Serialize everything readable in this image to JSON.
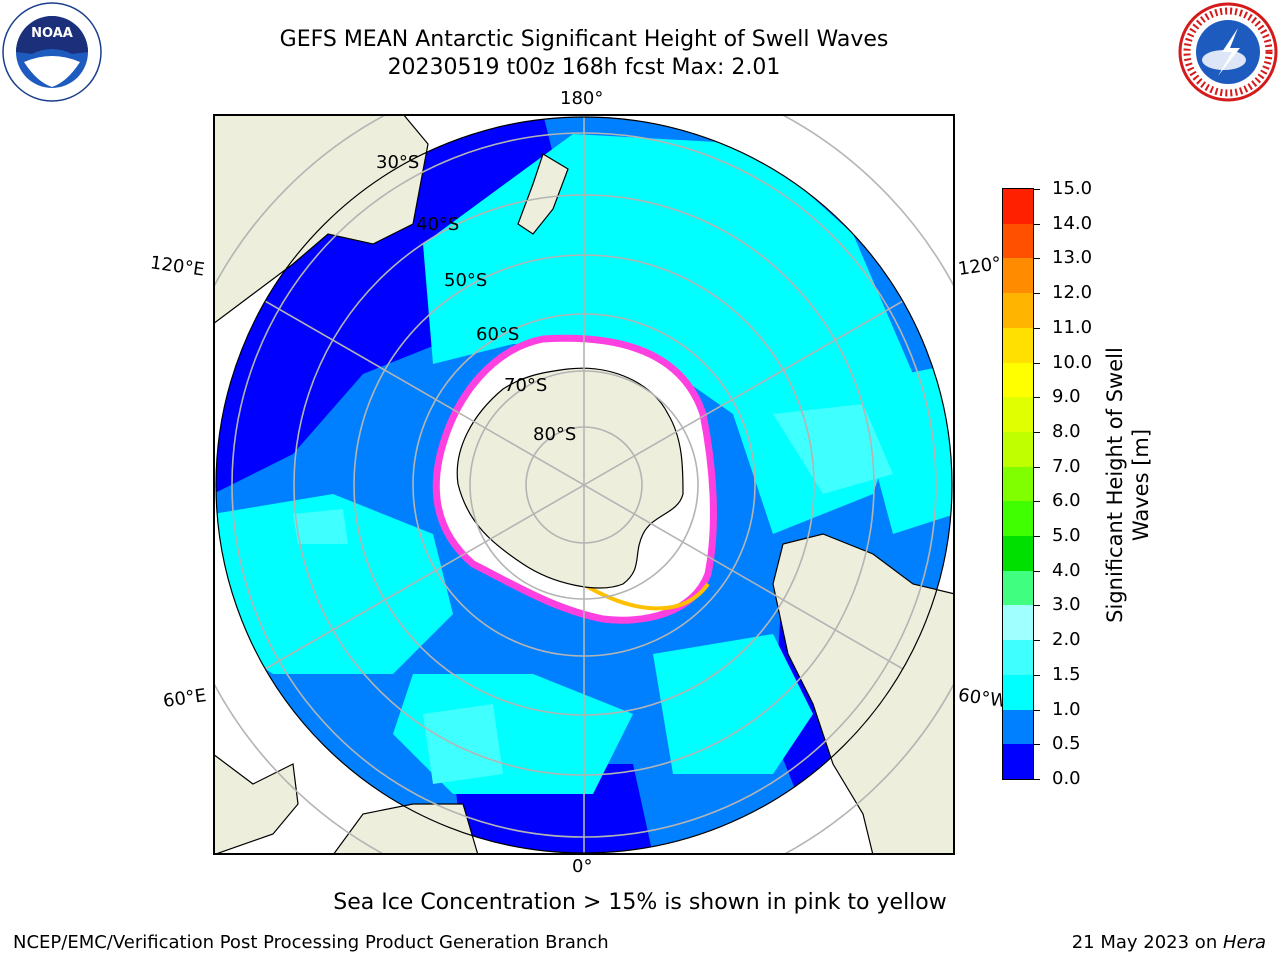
{
  "header": {
    "title_line1": "GEFS MEAN Antarctic Significant Height of Swell Waves",
    "title_line2": "20230519 t00z 168h fcst   Max: 2.01"
  },
  "logos": {
    "left": {
      "icon": "noaa-logo-icon",
      "text": "NOAA"
    },
    "right": {
      "icon": "nws-logo-icon",
      "text": "NATIONAL WEATHER SERVICE"
    }
  },
  "map": {
    "projection": "south-polar-stereographic",
    "longitude_labels": {
      "top": "180°",
      "bottom": "0°",
      "upper_left": "120°E",
      "lower_left": "60°E",
      "upper_right": "120°",
      "lower_right": "60°W"
    },
    "latitude_labels": [
      "30°S",
      "40°S",
      "50°S",
      "60°S",
      "70°S",
      "80°S"
    ],
    "colors": {
      "land": "#eeeedc",
      "sea_ice": "#ffffff",
      "ice_edge": "#ff40e0",
      "ice_edge_2": "#ffc000",
      "gridline": "#b4b4b4",
      "coastline": "#000000"
    }
  },
  "colorbar": {
    "title": "Significant Height of Swell Waves [m]",
    "ticks": [
      "0.0",
      "0.5",
      "1.0",
      "1.5",
      "2.0",
      "3.0",
      "4.0",
      "5.0",
      "6.0",
      "7.0",
      "8.0",
      "9.0",
      "10.0",
      "11.0",
      "12.0",
      "13.0",
      "14.0",
      "15.0"
    ],
    "colors": [
      "#0000ff",
      "#0080ff",
      "#00ffff",
      "#40ffff",
      "#a0ffff",
      "#40ff80",
      "#00e000",
      "#40ff00",
      "#80ff00",
      "#c0ff00",
      "#e0ff00",
      "#ffff00",
      "#ffe000",
      "#ffb400",
      "#ff8c00",
      "#ff5000",
      "#ff2000"
    ]
  },
  "note": "Sea Ice Concentration > 15% is shown in pink to yellow",
  "footer": {
    "left": "NCEP/EMC/Verification Post Processing Product Generation Branch",
    "right_prefix": "21 May 2023 on ",
    "right_machine": "Hera"
  }
}
